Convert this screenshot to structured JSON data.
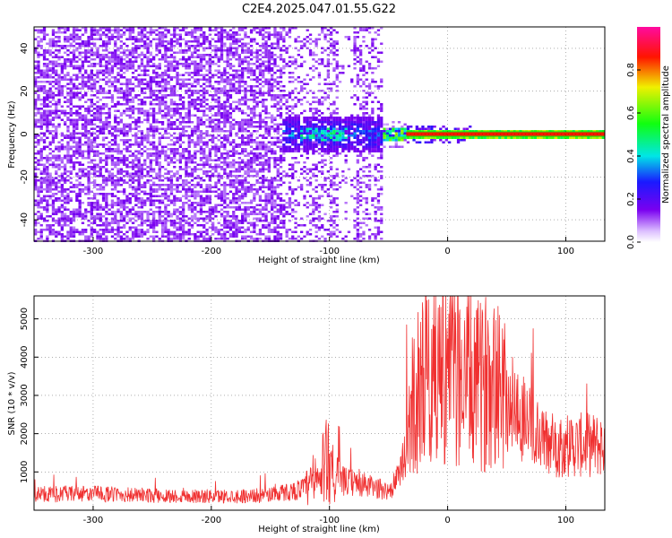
{
  "title": "C2E4.2025.047.01.55.G22",
  "chart_data": [
    {
      "type": "heatmap",
      "xlabel": "Height of straight line (km)",
      "ylabel": "Frequency (Hz)",
      "xlim": [
        -350,
        133
      ],
      "ylim": [
        -50,
        50
      ],
      "x_ticks": [
        "-300",
        "-200",
        "-100",
        "0",
        "100"
      ],
      "y_ticks": [
        "-40",
        "-20",
        "0",
        "20",
        "40"
      ],
      "colorbar": {
        "label": "Normalized spectral amplitude",
        "range": [
          0,
          1
        ],
        "ticks": [
          "0.0",
          "0.2",
          "0.4",
          "0.6",
          "0.8"
        ]
      },
      "features": {
        "noise_region_x": [
          -350,
          -55
        ],
        "tone_frequency_hz": 0,
        "strong_tone_x": [
          -35,
          133
        ]
      }
    },
    {
      "type": "line",
      "xlabel": "Height of straight line (km)",
      "ylabel": "SNR (10 * v/v)",
      "xlim": [
        -350,
        133
      ],
      "ylim": [
        0,
        5600
      ],
      "x_ticks": [
        "-300",
        "-200",
        "-100",
        "0",
        "100"
      ],
      "y_ticks": [
        "1000",
        "2000",
        "3000",
        "4000",
        "5000"
      ],
      "series": [
        {
          "color": "#f03030",
          "points": [
            [
              -350,
              420
            ],
            [
              -300,
              430
            ],
            [
              -250,
              380
            ],
            [
              -200,
              360
            ],
            [
              -160,
              380
            ],
            [
              -130,
              500
            ],
            [
              -110,
              700
            ],
            [
              -100,
              1500
            ],
            [
              -95,
              800
            ],
            [
              -70,
              650
            ],
            [
              -50,
              500
            ],
            [
              -40,
              900
            ],
            [
              -30,
              2700
            ],
            [
              -20,
              3600
            ],
            [
              -10,
              3800
            ],
            [
              0,
              3700
            ],
            [
              10,
              3600
            ],
            [
              20,
              3300
            ],
            [
              30,
              3200
            ],
            [
              40,
              3900
            ],
            [
              50,
              2900
            ],
            [
              60,
              2600
            ],
            [
              70,
              2200
            ],
            [
              80,
              1800
            ],
            [
              90,
              1700
            ],
            [
              100,
              1700
            ],
            [
              110,
              1700
            ],
            [
              133,
              1700
            ]
          ]
        }
      ]
    }
  ]
}
